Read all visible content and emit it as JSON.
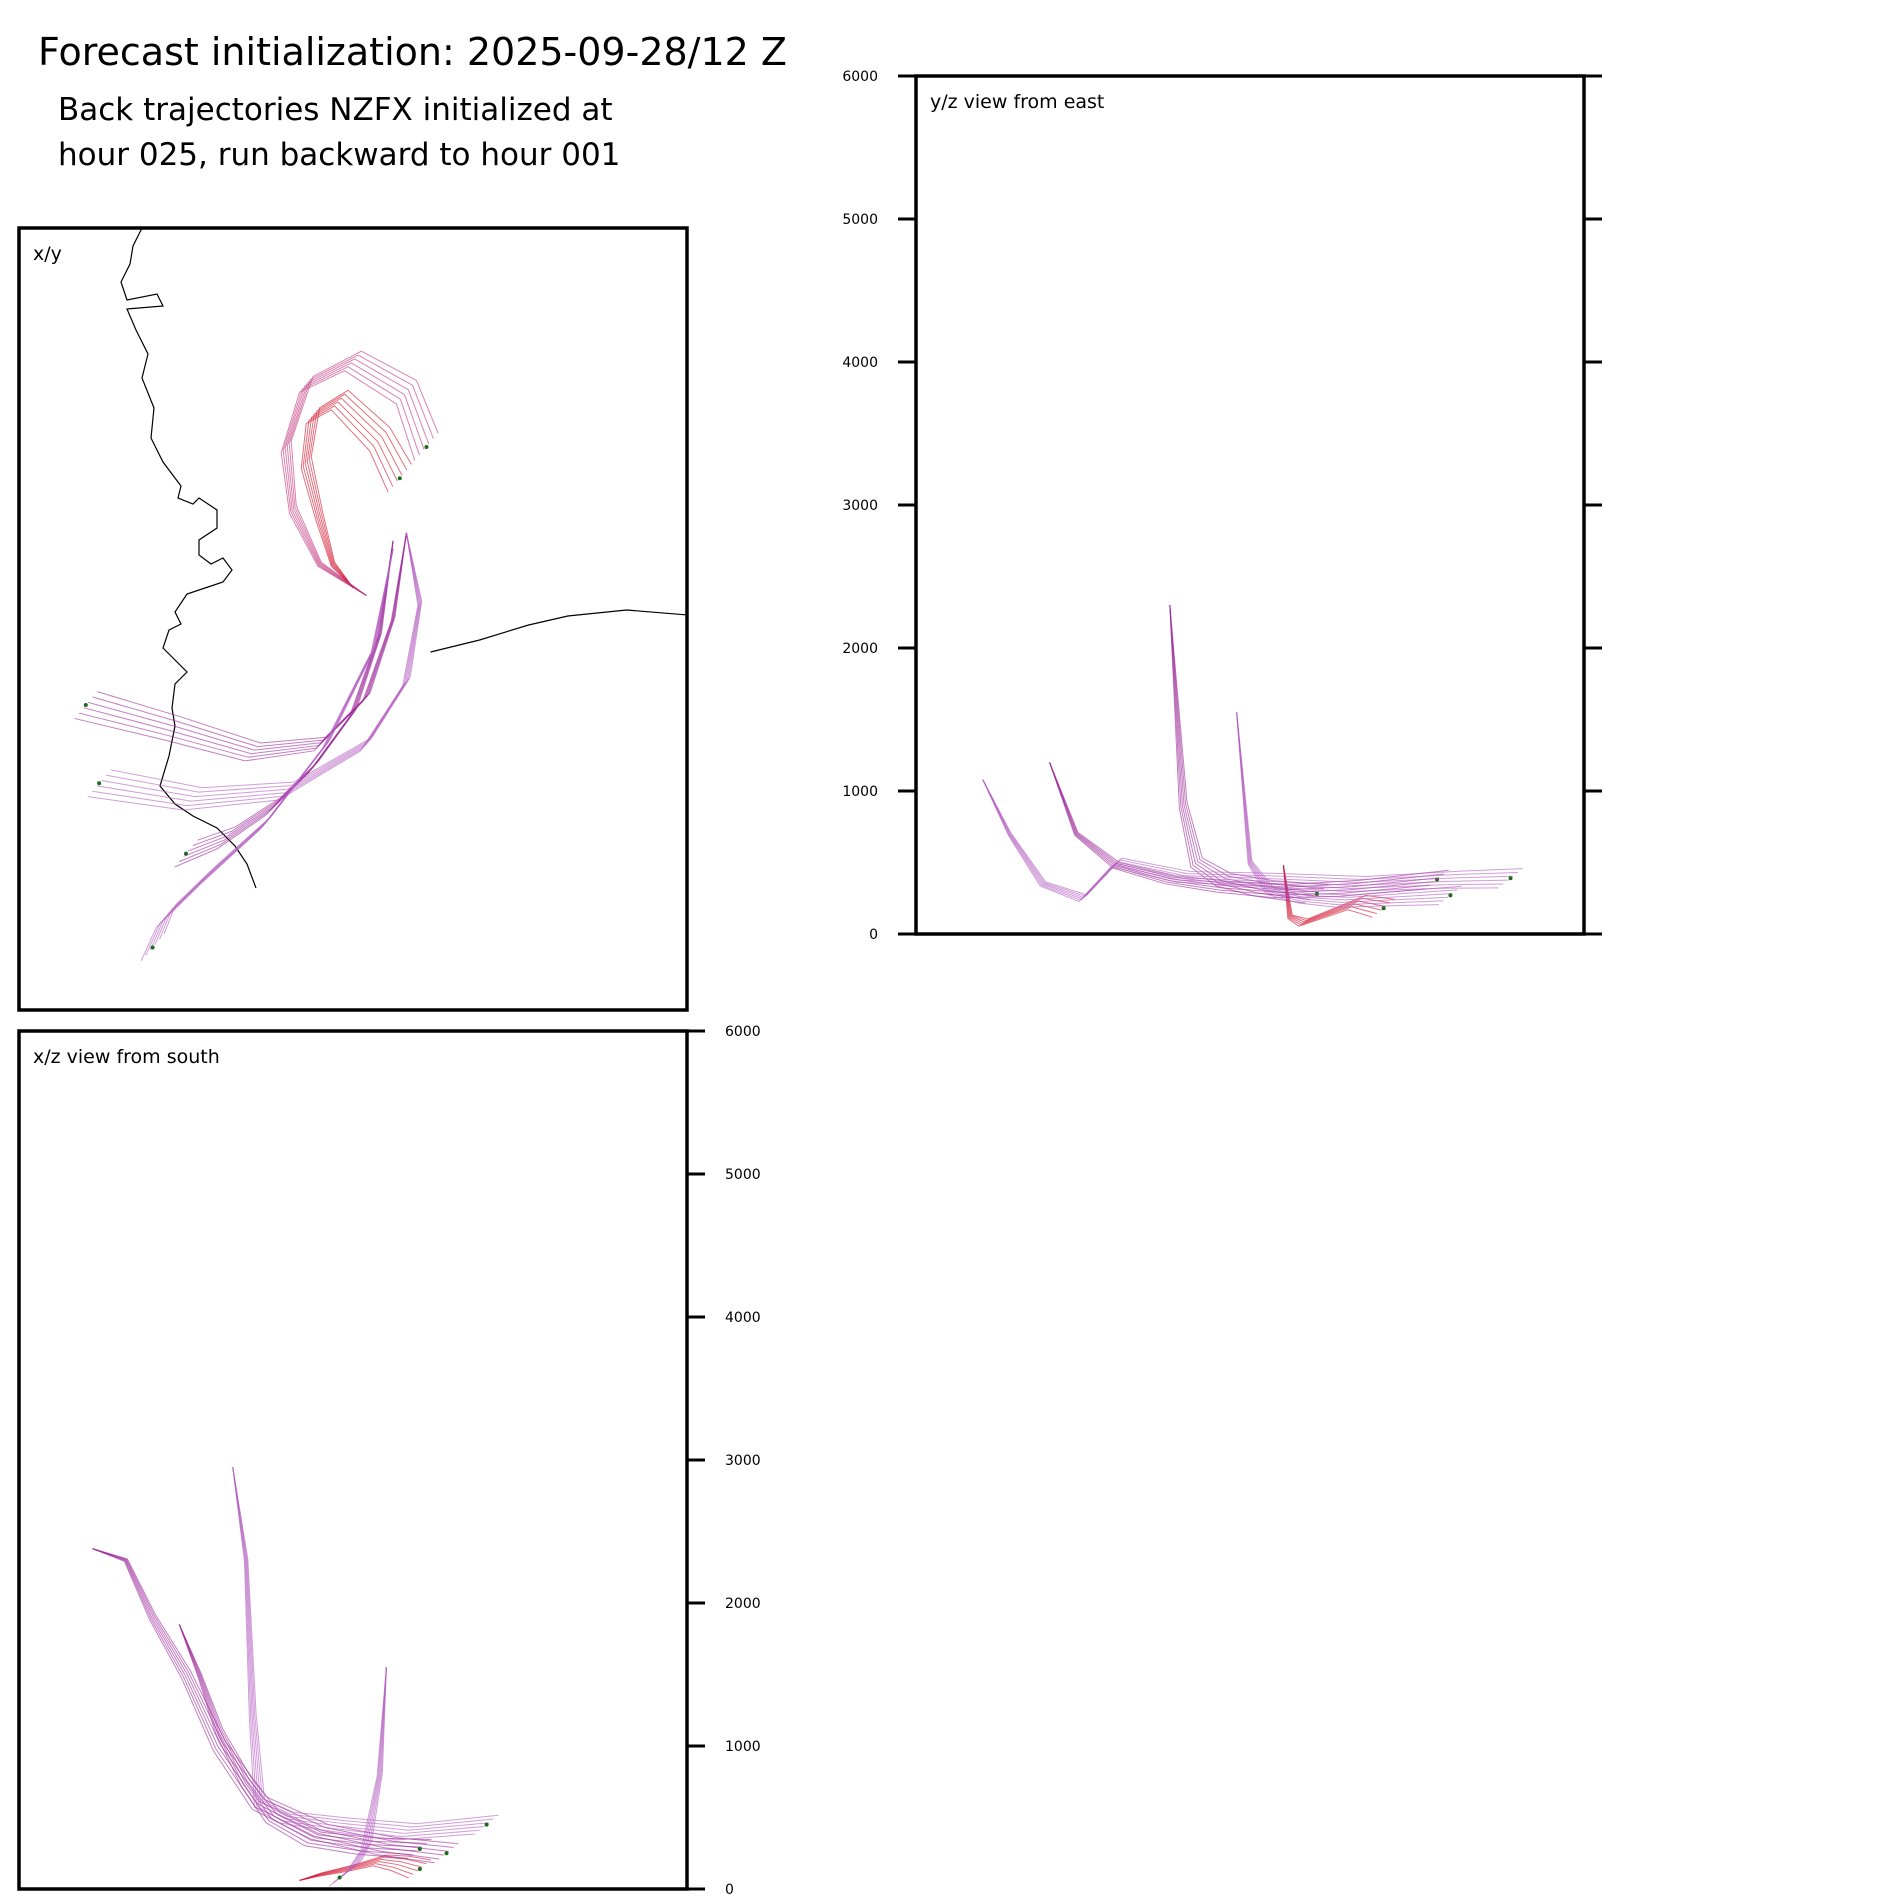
{
  "header": {
    "title": "Forecast initialization: 2025-09-28/12 Z",
    "subtitle_line1": "Back trajectories NZFX initialized at",
    "subtitle_line2": "hour 025, run backward to hour 001"
  },
  "chart_data": [
    {
      "type": "line",
      "panel": "xy",
      "label": "x/y",
      "coastline": true,
      "series": [
        {
          "color": "#d0112b",
          "x": [
            0.5,
            0.47,
            0.45,
            0.43,
            0.44,
            0.48,
            0.54,
            0.57
          ],
          "y": [
            0.54,
            0.57,
            0.63,
            0.7,
            0.76,
            0.78,
            0.73,
            0.68
          ]
        },
        {
          "color": "#c0307a",
          "x": [
            0.52,
            0.45,
            0.41,
            0.4,
            0.43,
            0.5,
            0.58,
            0.61
          ],
          "y": [
            0.53,
            0.57,
            0.64,
            0.72,
            0.8,
            0.83,
            0.79,
            0.72
          ]
        },
        {
          "color": "#9c2a9a",
          "x": [
            0.56,
            0.54,
            0.5,
            0.44,
            0.38,
            0.31,
            0.25
          ],
          "y": [
            0.6,
            0.48,
            0.38,
            0.31,
            0.26,
            0.22,
            0.2
          ]
        },
        {
          "color": "#9c2a9a",
          "x": [
            0.58,
            0.56,
            0.52,
            0.45,
            0.35,
            0.23,
            0.1
          ],
          "y": [
            0.61,
            0.5,
            0.4,
            0.34,
            0.33,
            0.36,
            0.39
          ]
        },
        {
          "color": "#b35cbf",
          "x": [
            0.58,
            0.6,
            0.58,
            0.52,
            0.4,
            0.26,
            0.12
          ],
          "y": [
            0.61,
            0.52,
            0.42,
            0.34,
            0.28,
            0.27,
            0.29
          ]
        },
        {
          "color": "#b35cbf",
          "x": [
            0.56,
            0.53,
            0.46,
            0.37,
            0.28,
            0.22,
            0.2
          ],
          "y": [
            0.59,
            0.46,
            0.34,
            0.24,
            0.17,
            0.12,
            0.08
          ]
        }
      ],
      "start_points_color": "#1a6b1a"
    },
    {
      "type": "line",
      "panel": "yz",
      "label": "y/z view from east",
      "ylim": [
        0,
        6000
      ],
      "yticks": [
        0,
        1000,
        2000,
        3000,
        4000,
        5000,
        6000
      ],
      "series": [
        {
          "color": "#d0112b",
          "x": [
            0.55,
            0.56,
            0.58,
            0.62,
            0.66,
            0.7
          ],
          "y": [
            480,
            120,
            80,
            150,
            220,
            180
          ]
        },
        {
          "color": "#9c2a9a",
          "x": [
            0.2,
            0.24,
            0.3,
            0.38,
            0.46,
            0.55,
            0.65,
            0.78
          ],
          "y": [
            1200,
            700,
            480,
            380,
            330,
            300,
            320,
            380
          ]
        },
        {
          "color": "#9c2a9a",
          "x": [
            0.38,
            0.39,
            0.4,
            0.42,
            0.46,
            0.52,
            0.6
          ],
          "y": [
            2300,
            1600,
            900,
            500,
            380,
            320,
            280
          ]
        },
        {
          "color": "#b35cbf",
          "x": [
            0.1,
            0.14,
            0.19,
            0.25,
            0.3,
            0.4,
            0.52,
            0.66,
            0.8,
            0.89
          ],
          "y": [
            1080,
            700,
            350,
            250,
            500,
            400,
            380,
            350,
            380,
            390
          ]
        },
        {
          "color": "#b35cbf",
          "x": [
            0.48,
            0.5,
            0.53,
            0.58,
            0.64,
            0.72,
            0.8
          ],
          "y": [
            1550,
            500,
            300,
            250,
            230,
            250,
            270
          ]
        }
      ],
      "start_points_color": "#1a6b1a"
    },
    {
      "type": "line",
      "panel": "xz",
      "label": "x/z view from south",
      "ylim": [
        0,
        6000
      ],
      "yticks": [
        0,
        1000,
        2000,
        3000,
        4000,
        5000,
        6000
      ],
      "series": [
        {
          "color": "#d0112b",
          "x": [
            0.42,
            0.45,
            0.5,
            0.54,
            0.57,
            0.6
          ],
          "y": [
            60,
            100,
            150,
            200,
            180,
            140
          ]
        },
        {
          "color": "#9c2a9a",
          "x": [
            0.11,
            0.16,
            0.2,
            0.25,
            0.3,
            0.36,
            0.45,
            0.55,
            0.64
          ],
          "y": [
            2380,
            2300,
            1900,
            1500,
            1000,
            600,
            400,
            300,
            250
          ]
        },
        {
          "color": "#9c2a9a",
          "x": [
            0.24,
            0.27,
            0.3,
            0.34,
            0.38,
            0.44,
            0.52,
            0.6
          ],
          "y": [
            1850,
            1500,
            1100,
            750,
            500,
            350,
            300,
            280
          ]
        },
        {
          "color": "#b35cbf",
          "x": [
            0.32,
            0.34,
            0.35,
            0.36,
            0.4,
            0.48,
            0.58,
            0.7
          ],
          "y": [
            2950,
            2300,
            1200,
            600,
            500,
            450,
            400,
            450
          ]
        },
        {
          "color": "#b35cbf",
          "x": [
            0.55,
            0.54,
            0.52,
            0.5,
            0.48
          ],
          "y": [
            1550,
            800,
            300,
            150,
            80
          ]
        }
      ],
      "start_points_color": "#1a6b1a"
    }
  ]
}
